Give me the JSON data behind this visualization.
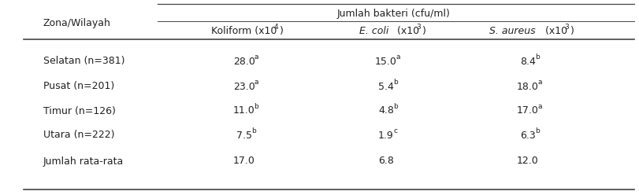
{
  "header_top": "Jumlah bakteri (cfu/ml)",
  "bg_color": "#ffffff",
  "text_color": "#222222",
  "line_color": "#444444",
  "font_size": 9.0,
  "sup_font_size": 6.5,
  "rows": [
    {
      "zone": "Selatan (n=381)",
      "k": "28.0",
      "ks": "a",
      "e": "15.0",
      "es": "a",
      "s": "8.4",
      "ss": "b"
    },
    {
      "zone": "Pusat (n=201)",
      "k": "23.0",
      "ks": "a",
      "e": "5.4",
      "es": "b",
      "s": "18.0",
      "ss": "a"
    },
    {
      "zone": "Timur (n=126)",
      "k": "11.0",
      "ks": "b",
      "e": "4.8",
      "es": "b",
      "s": "17.0",
      "ss": "a"
    },
    {
      "zone": "Utara (n=222)",
      "k": "7.5",
      "ks": "b",
      "e": "1.9",
      "es": "c",
      "s": "6.3",
      "ss": "b"
    },
    {
      "zone": "Jumlah rata-rata",
      "k": "17.0",
      "ks": "",
      "e": "6.8",
      "es": "",
      "s": "12.0",
      "ss": ""
    }
  ]
}
